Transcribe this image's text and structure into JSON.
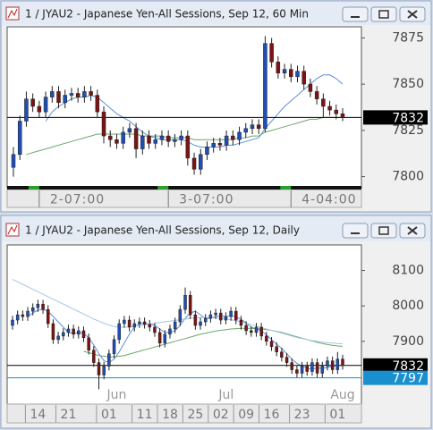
{
  "chart_data": [
    {
      "type": "candlestick",
      "title": "1 / JYAU2 - Japanese Yen-All Sessions, Sep 12, 60 Min",
      "up_color": "#1f4fb4",
      "down_color": "#7a1414",
      "open": [
        7805,
        7812,
        7830,
        7842,
        7838,
        7835,
        7843,
        7846,
        7840,
        7844,
        7845,
        7843,
        7846,
        7844,
        7835,
        7822,
        7820,
        7818,
        7824,
        7826,
        7815,
        7822,
        7818,
        7820,
        7822,
        7819,
        7820,
        7822,
        7810,
        7804,
        7812,
        7816,
        7818,
        7817,
        7822,
        7820,
        7824,
        7826,
        7828,
        7826,
        7872,
        7862,
        7856,
        7858,
        7854,
        7857,
        7850,
        7846,
        7842,
        7838,
        7836,
        7834
      ],
      "high": [
        7816,
        7833,
        7846,
        7845,
        7841,
        7846,
        7849,
        7849,
        7847,
        7848,
        7848,
        7849,
        7849,
        7847,
        7838,
        7825,
        7823,
        7827,
        7829,
        7829,
        7825,
        7825,
        7823,
        7825,
        7825,
        7823,
        7825,
        7825,
        7813,
        7815,
        7819,
        7821,
        7821,
        7825,
        7825,
        7827,
        7829,
        7831,
        7831,
        7876,
        7875,
        7865,
        7861,
        7861,
        7860,
        7860,
        7853,
        7849,
        7845,
        7841,
        7839,
        7837
      ],
      "low": [
        7800,
        7809,
        7827,
        7835,
        7832,
        7832,
        7840,
        7837,
        7837,
        7841,
        7840,
        7840,
        7841,
        7832,
        7818,
        7816,
        7815,
        7815,
        7821,
        7810,
        7812,
        7815,
        7815,
        7817,
        7816,
        7816,
        7817,
        7806,
        7801,
        7801,
        7809,
        7813,
        7814,
        7814,
        7817,
        7817,
        7821,
        7823,
        7823,
        7824,
        7859,
        7853,
        7853,
        7851,
        7851,
        7847,
        7843,
        7839,
        7832,
        7833,
        7831,
        7830
      ],
      "close": [
        7812,
        7830,
        7842,
        7838,
        7835,
        7843,
        7846,
        7840,
        7844,
        7845,
        7843,
        7846,
        7844,
        7835,
        7822,
        7820,
        7818,
        7824,
        7826,
        7815,
        7822,
        7818,
        7820,
        7822,
        7819,
        7820,
        7822,
        7810,
        7804,
        7812,
        7816,
        7818,
        7817,
        7822,
        7820,
        7824,
        7826,
        7828,
        7826,
        7872,
        7862,
        7856,
        7858,
        7854,
        7857,
        7850,
        7846,
        7842,
        7838,
        7836,
        7834,
        7832
      ],
      "series": [
        {
          "color": "#5b8fd8",
          "values": [
            null,
            null,
            null,
            null,
            null,
            7830,
            7835,
            7838,
            7840,
            7842,
            7843,
            7843,
            7844,
            7843,
            7840,
            7837,
            7834,
            7832,
            7830,
            7827,
            7824,
            7822,
            7821,
            7820,
            7820,
            7820,
            7820,
            7819,
            7817,
            7816,
            7816,
            7816,
            7816,
            7817,
            7817,
            7818,
            7819,
            7820,
            7821,
            7826,
            7830,
            7834,
            7838,
            7841,
            7844,
            7847,
            7850,
            7853,
            7855,
            7855,
            7853,
            7850
          ]
        },
        {
          "color": "#6aa86a",
          "values": [
            null,
            null,
            7812,
            7813,
            7814,
            7815,
            7816,
            7817,
            7818,
            7819,
            7820,
            7821,
            7822,
            7823,
            7823,
            7823,
            7823,
            7823,
            7823,
            7823,
            7822,
            7822,
            7822,
            7822,
            7821,
            7821,
            7821,
            7821,
            7820,
            7820,
            7820,
            7820,
            7820,
            7820,
            7820,
            7821,
            7821,
            7822,
            7822,
            7824,
            7825,
            7826,
            7827,
            7828,
            7829,
            7830,
            7831,
            7831,
            7832,
            7832,
            7832,
            7832
          ]
        }
      ],
      "markers": [
        {
          "value": 7832,
          "color": "#000000"
        }
      ],
      "xticks": [
        {
          "value": 4,
          "label": "2-07:00"
        },
        {
          "value": 24,
          "label": "3-07:00"
        },
        {
          "value": 43,
          "label": "4-04:00"
        }
      ],
      "ylim": [
        7794,
        7881
      ],
      "yticks": [
        7800,
        7825,
        7850,
        7875
      ]
    },
    {
      "type": "candlestick",
      "title": "1 / JYAU2 - Japanese Yen-All Sessions, Sep 12, Daily",
      "up_color": "#1f4fb4",
      "down_color": "#7a1414",
      "open": [
        7945,
        7960,
        7975,
        7970,
        7985,
        7995,
        8005,
        7990,
        7950,
        7905,
        7915,
        7925,
        7935,
        7920,
        7930,
        7910,
        7875,
        7840,
        7805,
        7830,
        7865,
        7905,
        7950,
        7960,
        7940,
        7950,
        7955,
        7948,
        7940,
        7925,
        7895,
        7920,
        7935,
        7955,
        7990,
        8030,
        7975,
        7945,
        7955,
        7965,
        7975,
        7980,
        7960,
        7970,
        7985,
        7960,
        7945,
        7930,
        7925,
        7940,
        7915,
        7900,
        7885,
        7870,
        7855,
        7840,
        7820,
        7810,
        7830,
        7815,
        7840,
        7810,
        7830,
        7845,
        7820,
        7850
      ],
      "high": [
        7972,
        7987,
        7987,
        7997,
        8007,
        8017,
        8017,
        8002,
        7962,
        7927,
        7937,
        7947,
        7947,
        7942,
        7942,
        7922,
        7887,
        7852,
        7842,
        7877,
        7917,
        7962,
        7972,
        7972,
        7962,
        7967,
        7967,
        7960,
        7952,
        7937,
        7932,
        7947,
        7967,
        8002,
        8052,
        8042,
        7987,
        7967,
        7977,
        7987,
        7992,
        7992,
        7982,
        7997,
        7997,
        7972,
        7957,
        7942,
        7952,
        7952,
        7927,
        7912,
        7897,
        7882,
        7867,
        7852,
        7832,
        7842,
        7842,
        7852,
        7852,
        7842,
        7857,
        7857,
        7870,
        7862
      ],
      "low": [
        7933,
        7948,
        7958,
        7958,
        7973,
        7983,
        7978,
        7938,
        7893,
        7893,
        7903,
        7913,
        7908,
        7908,
        7898,
        7863,
        7828,
        7765,
        7793,
        7818,
        7853,
        7893,
        7938,
        7928,
        7928,
        7938,
        7936,
        7928,
        7913,
        7883,
        7883,
        7908,
        7923,
        7943,
        7978,
        7963,
        7933,
        7933,
        7943,
        7953,
        7963,
        7948,
        7948,
        7958,
        7948,
        7933,
        7918,
        7913,
        7913,
        7903,
        7888,
        7873,
        7858,
        7843,
        7828,
        7808,
        7798,
        7798,
        7803,
        7803,
        7798,
        7798,
        7818,
        7808,
        7808,
        7820
      ],
      "close": [
        7960,
        7975,
        7970,
        7985,
        7995,
        8005,
        7990,
        7950,
        7905,
        7915,
        7925,
        7935,
        7920,
        7930,
        7910,
        7875,
        7840,
        7805,
        7830,
        7865,
        7905,
        7950,
        7960,
        7940,
        7950,
        7955,
        7948,
        7940,
        7925,
        7895,
        7920,
        7935,
        7955,
        7990,
        8030,
        7975,
        7945,
        7955,
        7965,
        7975,
        7980,
        7960,
        7970,
        7985,
        7960,
        7945,
        7930,
        7925,
        7940,
        7915,
        7900,
        7885,
        7870,
        7855,
        7840,
        7820,
        7810,
        7830,
        7815,
        7840,
        7810,
        7830,
        7845,
        7820,
        7850,
        7832
      ],
      "series": [
        {
          "color": "#5b8fd8",
          "values": [
            null,
            null,
            null,
            7970,
            7980,
            7988,
            7990,
            7985,
            7970,
            7955,
            7940,
            7925,
            7922,
            7925,
            7923,
            7910,
            7890,
            7865,
            7845,
            7840,
            7850,
            7870,
            7895,
            7920,
            7940,
            7950,
            7950,
            7948,
            7945,
            7935,
            7925,
            7925,
            7930,
            7945,
            7965,
            7980,
            7985,
            7975,
            7965,
            7965,
            7970,
            7972,
            7970,
            7972,
            7970,
            7962,
            7952,
            7940,
            7935,
            7930,
            7918,
            7905,
            7892,
            7880,
            7865,
            7850,
            7838,
            7830,
            7825,
            7822,
            7825,
            7824,
            7826,
            7830,
            7832,
            7832
          ]
        },
        {
          "color": "#6aa86a",
          "values": [
            null,
            null,
            null,
            null,
            null,
            null,
            null,
            null,
            null,
            null,
            null,
            null,
            null,
            null,
            7872,
            7868,
            7864,
            7860,
            7858,
            7856,
            7856,
            7858,
            7860,
            7864,
            7868,
            7872,
            7876,
            7880,
            7884,
            7888,
            7892,
            7896,
            7900,
            7904,
            7908,
            7912,
            7916,
            7920,
            7923,
            7926,
            7929,
            7931,
            7933,
            7935,
            7936,
            7937,
            7937,
            7937,
            7936,
            7935,
            7933,
            7931,
            7928,
            7925,
            7921,
            7917,
            7913,
            7909,
            7905,
            7901,
            7897,
            7894,
            7891,
            7889,
            7887,
            7886
          ]
        },
        {
          "color": "#a9c4ea",
          "values": [
            8075,
            8068,
            8061,
            8054,
            8047,
            8040,
            8033,
            8026,
            8019,
            8012,
            8005,
            7998,
            7991,
            7984,
            7977,
            7970,
            7963,
            7957,
            7951,
            7946,
            7942,
            7940,
            7940,
            7941,
            7943,
            7945,
            7947,
            7949,
            7951,
            7953,
            7955,
            7957,
            7959,
            7961,
            7963,
            7965,
            7966,
            7967,
            7967,
            7967,
            7966,
            7965,
            7963,
            7961,
            7958,
            7955,
            7951,
            7947,
            7943,
            7939,
            7935,
            7931,
            7927,
            7923,
            7919,
            7915,
            7911,
            7908,
            7905,
            7902,
            7900,
            7898,
            7896,
            7895,
            7894,
            7893
          ]
        }
      ],
      "markers": [
        {
          "value": 7832,
          "color": "#000000"
        },
        {
          "value": 7797,
          "color": "#1a8fd0"
        }
      ],
      "xticks": [
        {
          "value": 5,
          "label": "14"
        },
        {
          "value": 11,
          "label": "21"
        },
        {
          "value": 19,
          "label": "01"
        },
        {
          "value": 26,
          "label": "11"
        },
        {
          "value": 31,
          "label": "18"
        },
        {
          "value": 36,
          "label": "25"
        },
        {
          "value": 41,
          "label": "02"
        },
        {
          "value": 46,
          "label": "09"
        },
        {
          "value": 51,
          "label": "16"
        },
        {
          "value": 57,
          "label": "23"
        },
        {
          "value": 64,
          "label": "01"
        }
      ],
      "month_labels": [
        {
          "value": 20,
          "label": "Jun"
        },
        {
          "value": 42,
          "label": "Jul"
        },
        {
          "value": 64,
          "label": "Aug"
        }
      ],
      "ylim": [
        7723,
        8172
      ],
      "yticks": [
        7900,
        8000,
        8100
      ]
    }
  ]
}
